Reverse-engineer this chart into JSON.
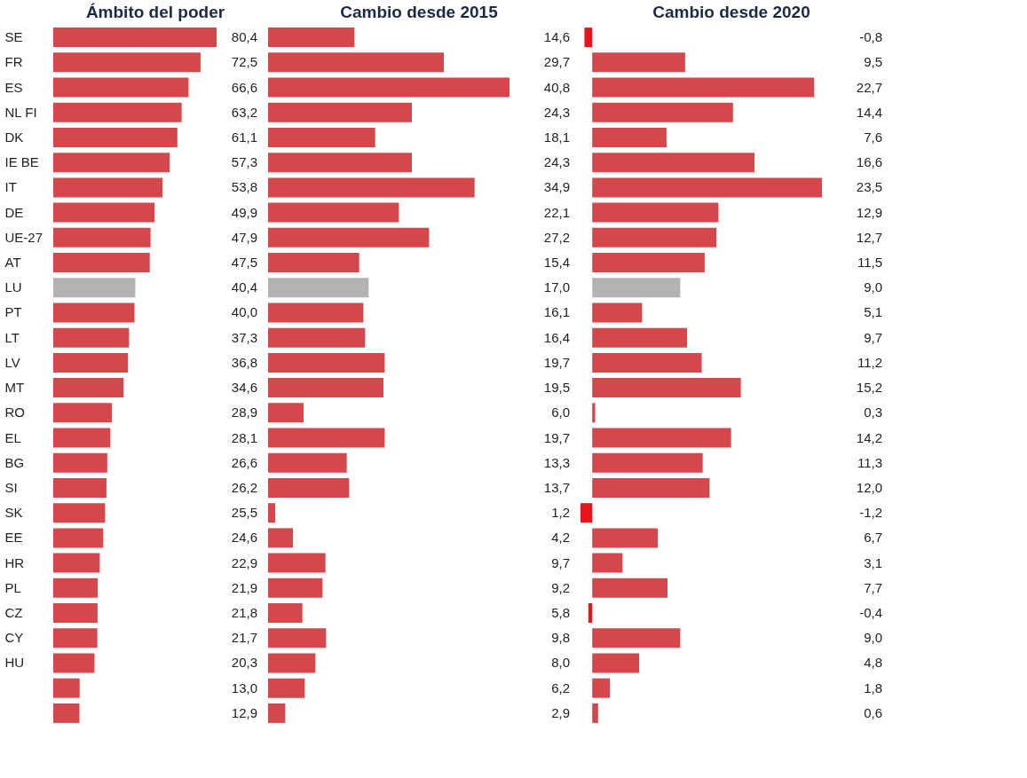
{
  "chart_data": [
    {
      "type": "bar",
      "orientation": "horizontal",
      "title": "Ámbito del poder",
      "tick_labels": "y",
      "categories": [
        "SE",
        "FR",
        "ES",
        "NL FI",
        "DK",
        "IE BE",
        "IT",
        "DE",
        "UE-27",
        "AT",
        "LU",
        "PT",
        "LT",
        "LV",
        "MT",
        "RO",
        "EL",
        "BG",
        "SI",
        "SK",
        "EE",
        "HR",
        "PL",
        "CZ",
        "CY",
        "HU",
        null,
        null
      ],
      "values": [
        80.4,
        72.5,
        66.6,
        63.2,
        61.1,
        57.3,
        53.8,
        49.9,
        47.9,
        47.5,
        40.4,
        40.0,
        37.3,
        36.8,
        34.6,
        28.9,
        28.1,
        26.6,
        26.2,
        25.5,
        24.6,
        22.9,
        21.9,
        21.8,
        21.7,
        20.3,
        13.0,
        12.9
      ],
      "value_labels": [
        "80,4",
        "72,5",
        "66,6",
        "63,2",
        "61,1",
        "57,3",
        "53,8",
        "49,9",
        "47,9",
        "47,5",
        "40,4",
        "40,0",
        "37,3",
        "36,8",
        "34,6",
        "28,9",
        "28,1",
        "26,6",
        "26,2",
        "25,5",
        "24,6",
        "22,9",
        "21,9",
        "21,8",
        "21,7",
        "20,3",
        "13,0",
        "12,9"
      ],
      "colors": [
        "#d4474a",
        "#d4474a",
        "#d4474a",
        "#d4474a",
        "#d4474a",
        "#d4474a",
        "#d4474a",
        "#d4474a",
        "#d4474a",
        "#d4474a",
        "#b3b3b3",
        "#d4474a",
        "#d4474a",
        "#d4474a",
        "#d4474a",
        "#d4474a",
        "#d4474a",
        "#d4474a",
        "#d4474a",
        "#d4474a",
        "#d4474a",
        "#d4474a",
        "#d4474a",
        "#d4474a",
        "#d4474a",
        "#d4474a",
        "#d4474a",
        "#d4474a"
      ]
    },
    {
      "type": "bar",
      "orientation": "horizontal",
      "title": "Cambio desde 2015",
      "tick_labels": false,
      "values": [
        14.6,
        29.7,
        40.8,
        24.3,
        18.1,
        24.3,
        34.9,
        22.1,
        27.2,
        15.4,
        17.0,
        16.1,
        16.4,
        19.7,
        19.5,
        6.0,
        19.7,
        13.3,
        13.7,
        1.2,
        4.2,
        9.7,
        9.2,
        5.8,
        9.8,
        8.0,
        6.2,
        2.9
      ],
      "value_labels": [
        "14,6",
        "29,7",
        "40,8",
        "24,3",
        "18,1",
        "24,3",
        "34,9",
        "22,1",
        "27,2",
        "15,4",
        "17,0",
        "16,1",
        "16,4",
        "19,7",
        "19,5",
        "6,0",
        "19,7",
        "13,3",
        "13,7",
        "1,2",
        "4,2",
        "9,7",
        "9,2",
        "5,8",
        "9,8",
        "8,0",
        "6,2",
        "2,9"
      ],
      "colors": [
        "#d4474a",
        "#d4474a",
        "#d4474a",
        "#d4474a",
        "#d4474a",
        "#d4474a",
        "#d4474a",
        "#d4474a",
        "#d4474a",
        "#d4474a",
        "#b3b3b3",
        "#d4474a",
        "#d4474a",
        "#d4474a",
        "#d4474a",
        "#d4474a",
        "#d4474a",
        "#d4474a",
        "#d4474a",
        "#d4474a",
        "#d4474a",
        "#d4474a",
        "#d4474a",
        "#d4474a",
        "#d4474a",
        "#d4474a",
        "#d4474a",
        "#d4474a"
      ]
    },
    {
      "type": "bar",
      "orientation": "horizontal",
      "title": "Cambio desde 2020",
      "tick_labels": false,
      "values": [
        -0.8,
        9.5,
        22.7,
        14.4,
        7.6,
        16.6,
        23.5,
        12.9,
        12.7,
        11.5,
        9.0,
        5.1,
        9.7,
        11.2,
        15.2,
        0.3,
        14.2,
        11.3,
        12.0,
        -1.2,
        6.7,
        3.1,
        7.7,
        -0.4,
        9.0,
        4.8,
        1.8,
        0.6
      ],
      "value_labels": [
        "-0,8",
        "9,5",
        "22,7",
        "14,4",
        "7,6",
        "16,6",
        "23,5",
        "12,9",
        "12,7",
        "11,5",
        "9,0",
        "5,1",
        "9,7",
        "11,2",
        "15,2",
        "0,3",
        "14,2",
        "11,3",
        "12,0",
        "-1,2",
        "6,7",
        "3,1",
        "7,7",
        "-0,4",
        "9,0",
        "4,8",
        "1,8",
        "0,6"
      ],
      "colors": [
        "#e8141c",
        "#d4474a",
        "#d4474a",
        "#d4474a",
        "#d4474a",
        "#d4474a",
        "#d4474a",
        "#d4474a",
        "#d4474a",
        "#d4474a",
        "#b3b3b3",
        "#d4474a",
        "#d4474a",
        "#d4474a",
        "#d4474a",
        "#d4474a",
        "#d4474a",
        "#d4474a",
        "#d4474a",
        "#e8141c",
        "#d4474a",
        "#d4474a",
        "#d4474a",
        "#e8141c",
        "#d4474a",
        "#d4474a",
        "#d4474a",
        "#d4474a"
      ]
    }
  ]
}
